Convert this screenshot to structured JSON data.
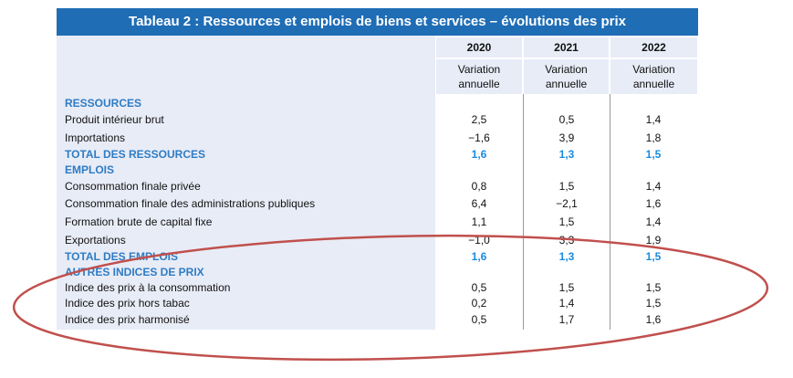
{
  "title": "Tableau 2 : Ressources et emplois de biens et services – évolutions des prix",
  "columns": [
    {
      "year": "2020",
      "sub1": "Variation",
      "sub2": "annuelle"
    },
    {
      "year": "2021",
      "sub1": "Variation",
      "sub2": "annuelle"
    },
    {
      "year": "2022",
      "sub1": "Variation",
      "sub2": "annuelle"
    }
  ],
  "rows": [
    {
      "label": "RESSOURCES",
      "type": "sec",
      "values": [
        "",
        "",
        ""
      ]
    },
    {
      "label": "Produit intérieur brut",
      "type": "item",
      "values": [
        "2,5",
        "0,5",
        "1,4"
      ]
    },
    {
      "label": "Importations",
      "type": "item",
      "values": [
        "−1,6",
        "3,9",
        "1,8"
      ]
    },
    {
      "label": "TOTAL DES RESSOURCES",
      "type": "tot",
      "values": [
        "1,6",
        "1,3",
        "1,5"
      ]
    },
    {
      "label": "EMPLOIS",
      "type": "sec",
      "values": [
        "",
        "",
        ""
      ]
    },
    {
      "label": "Consommation finale privée",
      "type": "item",
      "values": [
        "0,8",
        "1,5",
        "1,4"
      ]
    },
    {
      "label": "Consommation finale des administrations publiques",
      "type": "item",
      "values": [
        "6,4",
        "−2,1",
        "1,6"
      ]
    },
    {
      "label": "Formation brute de capital fixe",
      "type": "item",
      "values": [
        "1,1",
        "1,5",
        "1,4"
      ]
    },
    {
      "label": "Exportations",
      "type": "item",
      "values": [
        "−1,0",
        "3,3",
        "1,9"
      ]
    },
    {
      "label": "TOTAL DES EMPLOIS",
      "type": "tot",
      "values": [
        "1,6",
        "1,3",
        "1,5"
      ]
    },
    {
      "label": "AUTRES INDICES DE PRIX",
      "type": "sec",
      "values": [
        "",
        "",
        ""
      ]
    },
    {
      "label": "Indice des prix à la consommation",
      "type": "item",
      "values": [
        "0,5",
        "1,5",
        "1,5"
      ]
    },
    {
      "label": "Indice des prix hors tabac",
      "type": "item",
      "values": [
        "0,2",
        "1,4",
        "1,5"
      ]
    },
    {
      "label": "Indice des prix harmonisé",
      "type": "item",
      "values": [
        "0,5",
        "1,7",
        "1,6"
      ]
    }
  ],
  "colors": {
    "header": "#1f6db5",
    "label_bg": "#e8ecf7",
    "section": "#2e7cc4",
    "annotation": "#c0504d"
  }
}
